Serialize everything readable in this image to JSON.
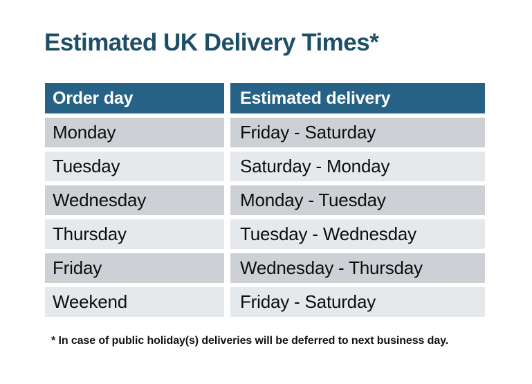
{
  "page": {
    "title": "Estimated UK Delivery Times*",
    "footnote": "* In case of public holiday(s) deliveries will be deferred to next business day."
  },
  "table": {
    "columns": [
      "Order day",
      "Estimated delivery"
    ],
    "rows": [
      {
        "order_day": "Monday",
        "estimated_delivery": "Friday - Saturday"
      },
      {
        "order_day": "Tuesday",
        "estimated_delivery": "Saturday - Monday"
      },
      {
        "order_day": "Wednesday",
        "estimated_delivery": "Monday - Tuesday"
      },
      {
        "order_day": "Thursday",
        "estimated_delivery": "Tuesday - Wednesday"
      },
      {
        "order_day": "Friday",
        "estimated_delivery": "Wednesday - Thursday"
      },
      {
        "order_day": "Weekend",
        "estimated_delivery": "Friday - Saturday"
      }
    ]
  },
  "colors": {
    "page_bg": "#FFFFFF",
    "title_text": "#1D4E68",
    "header_bg": "#256285",
    "header_text": "#FFFFFF",
    "row_odd_bg": "#CDD1D6",
    "row_even_bg": "#E6E9EB",
    "body_text": "#0D0D0D",
    "footnote_text": "#111111"
  }
}
